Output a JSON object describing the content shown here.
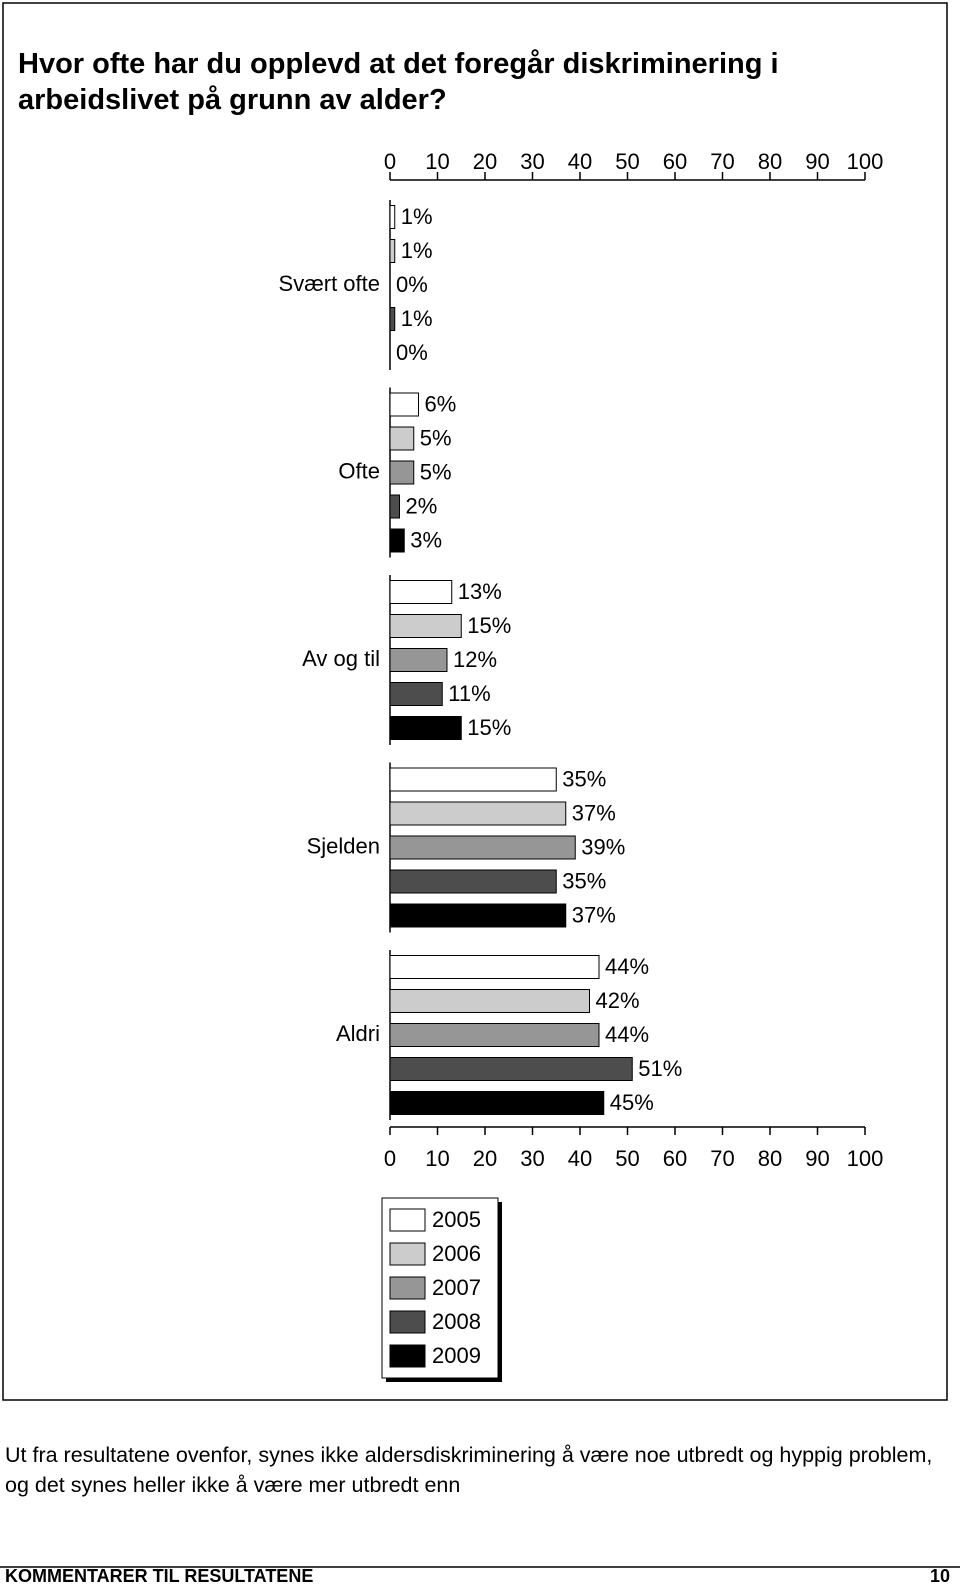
{
  "chart_data": {
    "type": "bar",
    "orientation": "horizontal",
    "title": "Hvor ofte har du opplevd at det foregår diskriminering i arbeidslivet på grunn av alder?",
    "categories": [
      "Svært ofte",
      "Ofte",
      "Av og til",
      "Sjelden",
      "Aldri"
    ],
    "series": [
      {
        "name": "2005",
        "color": "#ffffff",
        "values": [
          1,
          6,
          13,
          35,
          44
        ],
        "value_labels": [
          "1%",
          "6%",
          "13%",
          "35%",
          "44%"
        ]
      },
      {
        "name": "2006",
        "color": "#cccccc",
        "values": [
          1,
          5,
          15,
          37,
          42
        ],
        "value_labels": [
          "1%",
          "5%",
          "15%",
          "37%",
          "42%"
        ]
      },
      {
        "name": "2007",
        "color": "#969696",
        "values": [
          0,
          5,
          12,
          39,
          44
        ],
        "value_labels": [
          "0%",
          "5%",
          "12%",
          "39%",
          "44%"
        ]
      },
      {
        "name": "2008",
        "color": "#4d4d4d",
        "values": [
          1,
          2,
          11,
          35,
          51
        ],
        "value_labels": [
          "1%",
          "2%",
          "11%",
          "35%",
          "51%"
        ]
      },
      {
        "name": "2009",
        "color": "#000000",
        "values": [
          0,
          3,
          15,
          37,
          45
        ],
        "value_labels": [
          "0%",
          "3%",
          "15%",
          "37%",
          "45%"
        ]
      }
    ],
    "xlim": [
      0,
      100
    ],
    "xticks": [
      0,
      10,
      20,
      30,
      40,
      50,
      60,
      70,
      80,
      90,
      100
    ],
    "grid": false
  },
  "body_text": "Ut fra resultatene ovenfor, synes ikke aldersdiskriminering å være noe utbredt og hyppig problem, og det synes heller ikke å være mer utbredt enn",
  "footer": {
    "section": "KOMMENTARER TIL RESULTATENE",
    "page": "10"
  }
}
